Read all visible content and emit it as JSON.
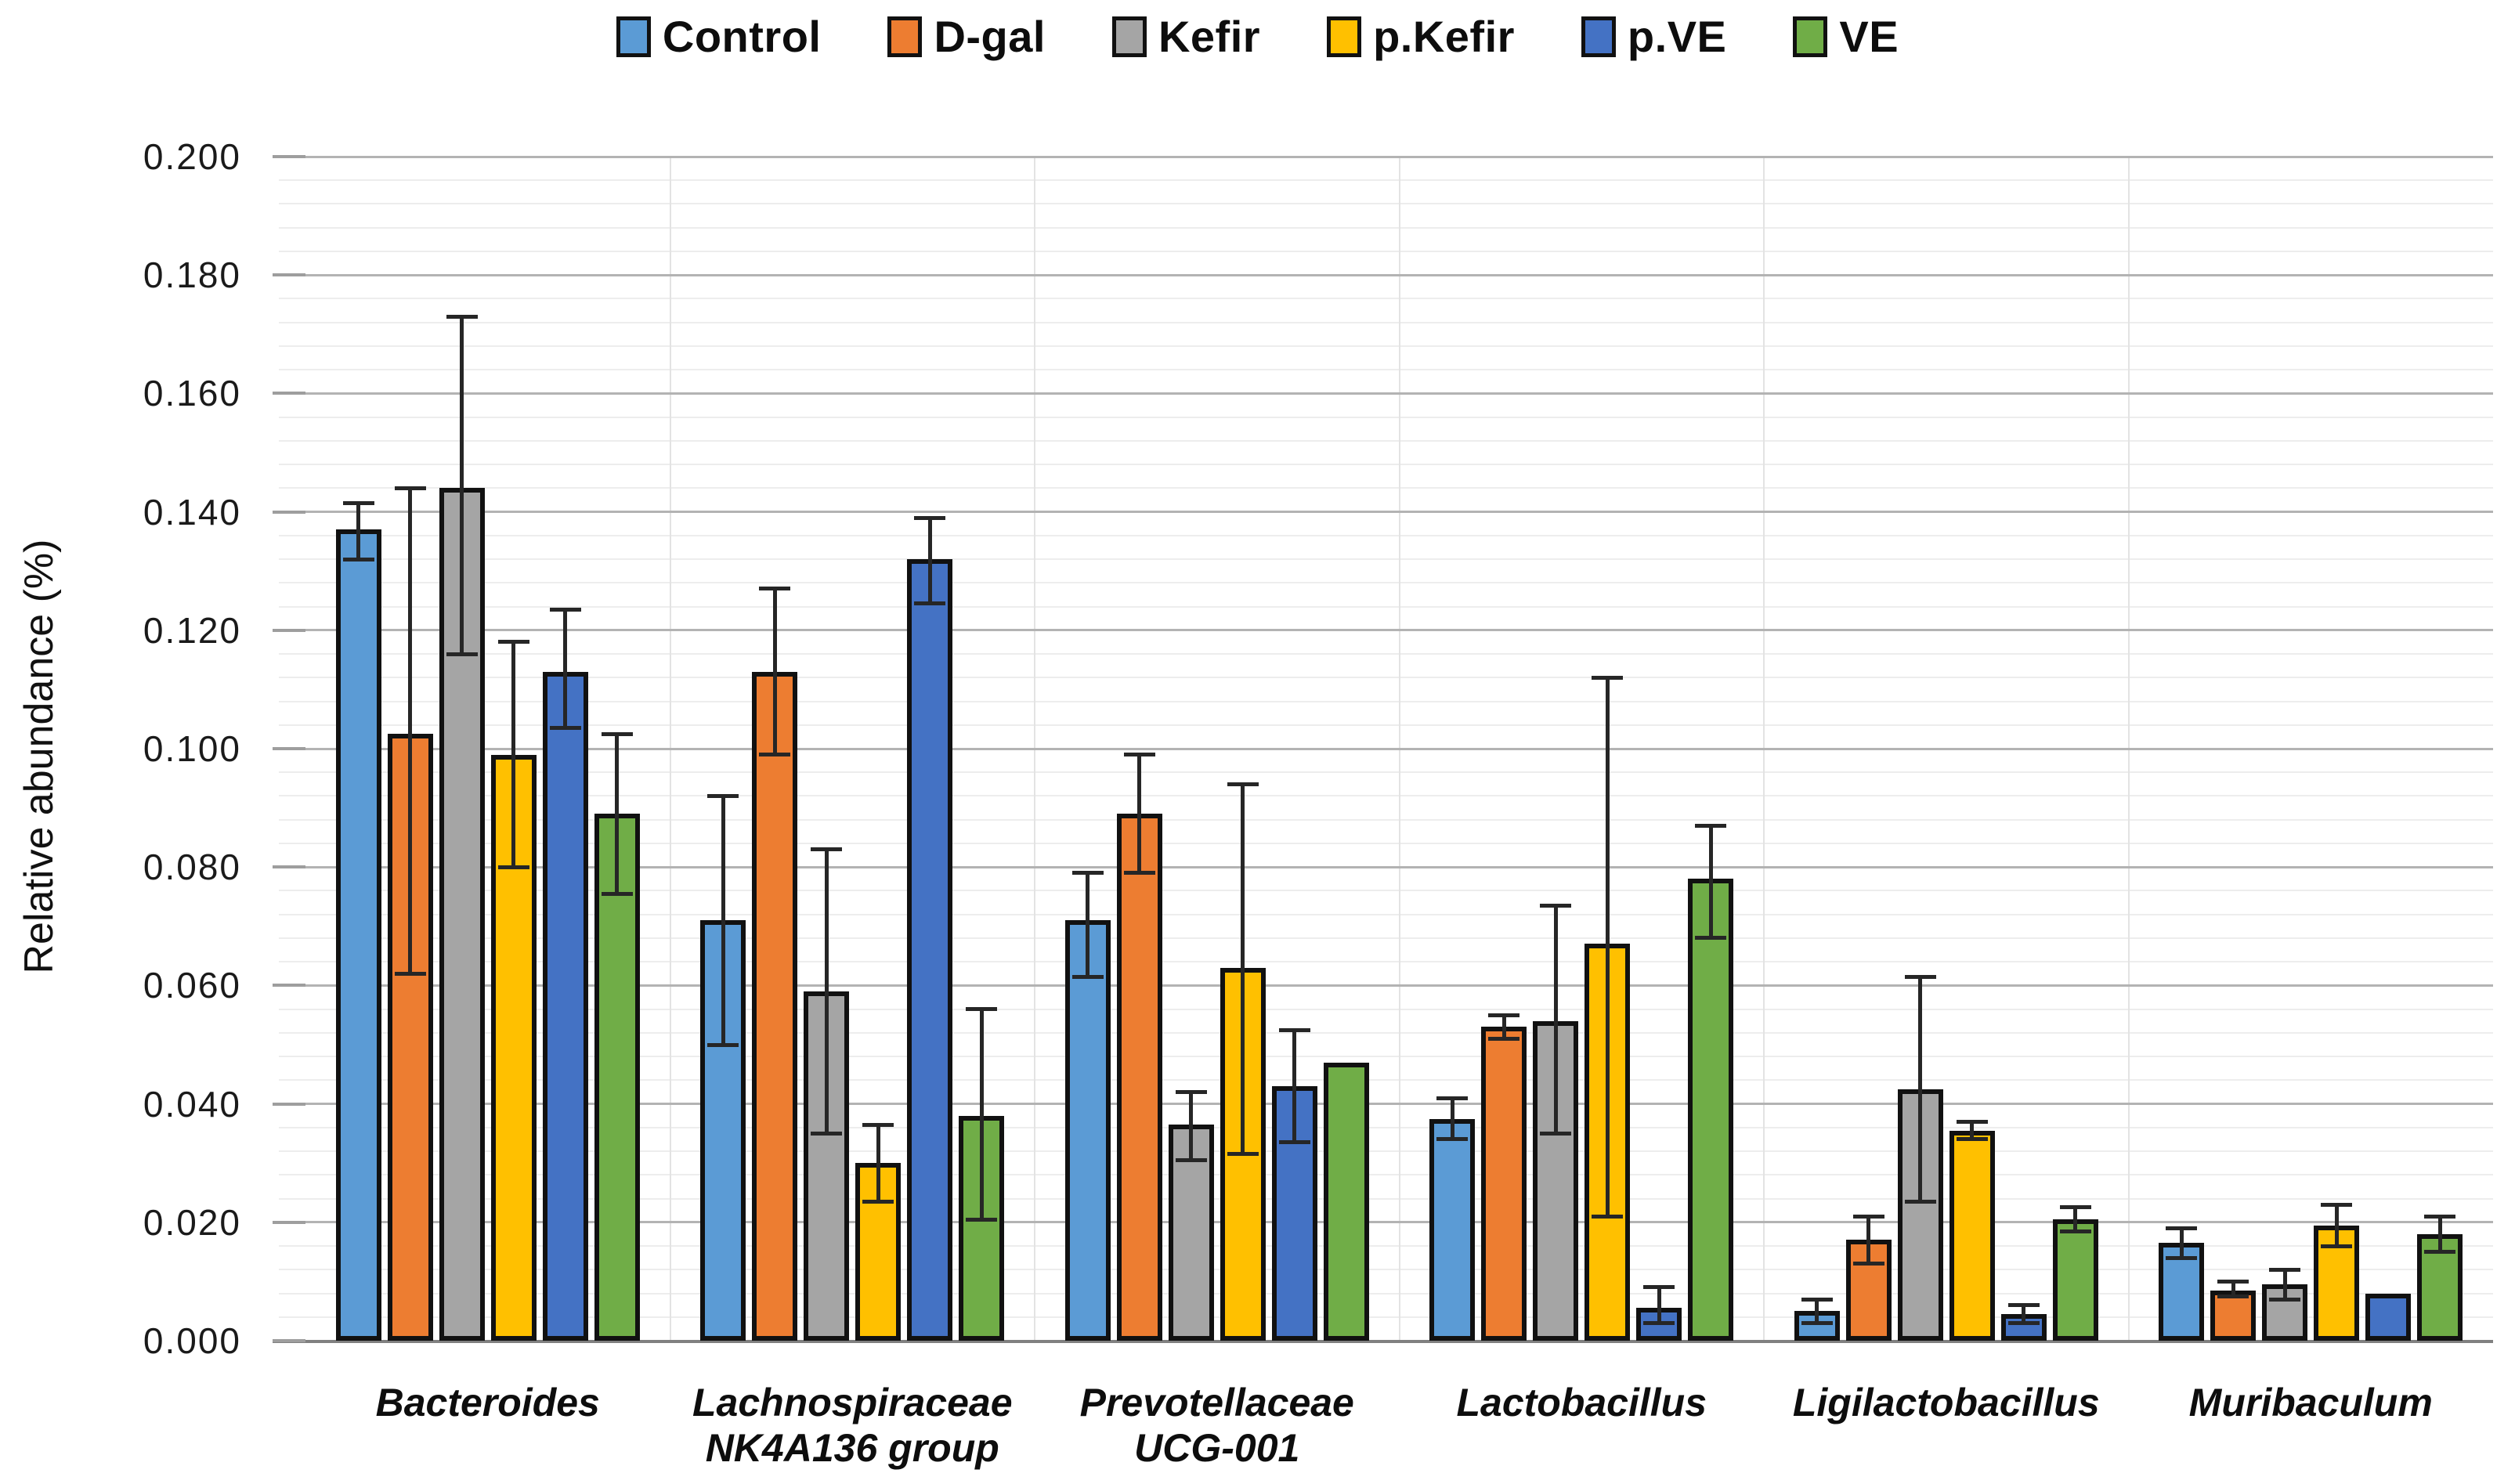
{
  "figure": {
    "kind": "grouped bar chart with error bars"
  },
  "chart_data": {
    "type": "bar",
    "title": "",
    "ylabel": "Relative abundance (%)",
    "xlabel": "",
    "ylim": [
      0,
      0.2
    ],
    "ytick_step": 0.02,
    "minor_tick_step": 0.004,
    "grid": "horizontal major + faint minor",
    "legend_position": "top-center",
    "yticks": [
      "0.000",
      "0.020",
      "0.040",
      "0.060",
      "0.080",
      "0.100",
      "0.120",
      "0.140",
      "0.160",
      "0.180",
      "0.200"
    ],
    "categories": [
      "Bacteroides",
      "Lachnospiraceae\nNK4A136 group",
      "Prevotellaceae\nUCG-001",
      "Lactobacillus",
      "Ligilactobacillus",
      "Muribaculum"
    ],
    "series": [
      {
        "name": "Control",
        "color": "#5B9BD5",
        "values": [
          0.137,
          0.071,
          0.071,
          0.0375,
          0.005,
          0.0165
        ],
        "errors": [
          [
            0.132,
            0.1415
          ],
          [
            0.05,
            0.092
          ],
          [
            0.0615,
            0.079
          ],
          [
            0.034,
            0.041
          ],
          [
            0.003,
            0.007
          ],
          [
            0.014,
            0.019
          ]
        ]
      },
      {
        "name": "D-gal",
        "color": "#ED7D31",
        "values": [
          0.1025,
          0.113,
          0.089,
          0.053,
          0.017,
          0.0085
        ],
        "errors": [
          [
            0.062,
            0.144
          ],
          [
            0.099,
            0.127
          ],
          [
            0.079,
            0.099
          ],
          [
            0.051,
            0.055
          ],
          [
            0.013,
            0.021
          ],
          [
            0.0075,
            0.01
          ]
        ]
      },
      {
        "name": "Kefir",
        "color": "#A5A5A5",
        "values": [
          0.144,
          0.059,
          0.0365,
          0.054,
          0.0425,
          0.0095
        ],
        "errors": [
          [
            0.116,
            0.173
          ],
          [
            0.035,
            0.083
          ],
          [
            0.0305,
            0.042
          ],
          [
            0.035,
            0.0735
          ],
          [
            0.0235,
            0.0615
          ],
          [
            0.007,
            0.012
          ]
        ]
      },
      {
        "name": "p.Kefir",
        "color": "#FFC000",
        "values": [
          0.099,
          0.03,
          0.063,
          0.067,
          0.0355,
          0.0195
        ],
        "errors": [
          [
            0.08,
            0.118
          ],
          [
            0.0235,
            0.0365
          ],
          [
            0.0315,
            0.094
          ],
          [
            0.021,
            0.112
          ],
          [
            0.034,
            0.037
          ],
          [
            0.016,
            0.023
          ]
        ]
      },
      {
        "name": "p.VE",
        "color": "#4472C4",
        "values": [
          0.113,
          0.132,
          0.043,
          0.0055,
          0.0045,
          0.008
        ],
        "errors": [
          [
            0.1035,
            0.1235
          ],
          [
            0.1245,
            0.139
          ],
          [
            0.0335,
            0.0525
          ],
          [
            0.003,
            0.009
          ],
          [
            0.003,
            0.006
          ],
          null
        ]
      },
      {
        "name": "VE",
        "color": "#70AD47",
        "values": [
          0.089,
          0.038,
          0.047,
          0.078,
          0.0205,
          0.018
        ],
        "errors": [
          [
            0.0755,
            0.1025
          ],
          [
            0.0205,
            0.056
          ],
          null,
          [
            0.068,
            0.087
          ],
          [
            0.0185,
            0.0225
          ],
          [
            0.015,
            0.021
          ]
        ]
      }
    ],
    "colors": {
      "bar_outline": "#111111",
      "error_bar": "#262626",
      "gridline_major": "#b3b3b3",
      "gridline_minor": "#ededed",
      "axis_line": "#808080",
      "tick_stub": "#9e9e9e",
      "text": "#111111"
    }
  }
}
